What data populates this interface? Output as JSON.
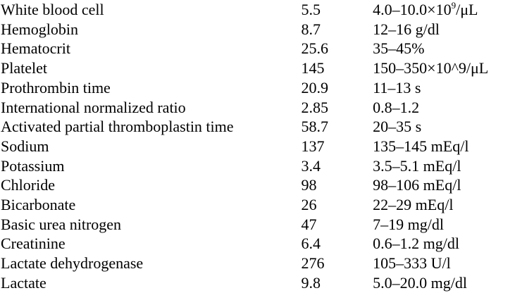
{
  "lab_results": [
    {
      "test": "White blood cell",
      "value": "5.5",
      "range": "4.0–10.0×10",
      "range_sup": "9",
      "range_suffix": "/μL"
    },
    {
      "test": "Hemoglobin",
      "value": "8.7",
      "range": "12–16 g/dl"
    },
    {
      "test": "Hematocrit",
      "value": "25.6",
      "range": "35–45%"
    },
    {
      "test": "Platelet",
      "value": "145",
      "range": "150–350×10^9/μL"
    },
    {
      "test": "Prothrombin time",
      "value": "20.9",
      "range": "11–13 s"
    },
    {
      "test": "International normalized ratio",
      "value": "2.85",
      "range": "0.8–1.2"
    },
    {
      "test": "Activated partial thromboplastin time",
      "value": "58.7",
      "range": "20–35 s"
    },
    {
      "test": "Sodium",
      "value": "137",
      "range": "135–145 mEq/l"
    },
    {
      "test": "Potassium",
      "value": "3.4",
      "range": "3.5–5.1 mEq/l"
    },
    {
      "test": "Chloride",
      "value": "98",
      "range": "98–106 mEq/l"
    },
    {
      "test": "Bicarbonate",
      "value": "26",
      "range": "22–29 mEq/l"
    },
    {
      "test": "Basic urea nitrogen",
      "value": "47",
      "range": "7–19 mg/dl"
    },
    {
      "test": "Creatinine",
      "value": "6.4",
      "range": "0.6–1.2 mg/dl"
    },
    {
      "test": "Lactate dehydrogenase",
      "value": "276",
      "range": "105–333 U/l"
    },
    {
      "test": "Lactate",
      "value": "9.8",
      "range": "5.0–20.0 mg/dl"
    }
  ]
}
